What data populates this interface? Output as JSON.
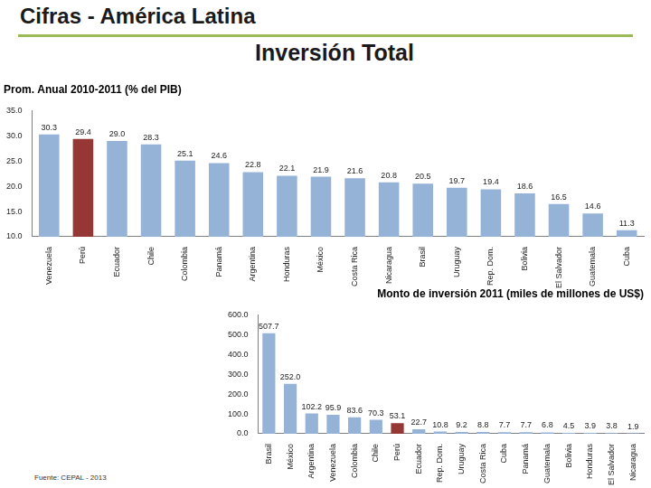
{
  "title": "Cifras - América Latina",
  "subtitle": "Inversión Total",
  "source": "Fuente: CEPAL - 2013",
  "chart_data": [
    {
      "type": "bar",
      "title": "Prom. Anual 2010-2011 (% del PIB)",
      "categories": [
        "Venezuela",
        "Perú",
        "Ecuador",
        "Chile",
        "Colombia",
        "Panamá",
        "Argentina",
        "Honduras",
        "México",
        "Costa Rica",
        "Nicaragua",
        "Brasil",
        "Uruguay",
        "Rep. Dom.",
        "Bolivia",
        "El Salvador",
        "Guatemala",
        "Cuba"
      ],
      "values": [
        30.3,
        29.4,
        29.0,
        28.3,
        25.1,
        24.6,
        22.8,
        22.1,
        21.9,
        21.6,
        20.8,
        20.5,
        19.7,
        19.4,
        18.6,
        16.5,
        14.6,
        11.3
      ],
      "value_labels": [
        "30.3",
        "29.4",
        "29.0",
        "28.3",
        "25.1",
        "24.6",
        "22.8",
        "22.1",
        "21.9",
        "21.6",
        "20.8",
        "20.5",
        "19.7",
        "19.4",
        "18.6",
        "16.5",
        "14.6",
        "11.3"
      ],
      "colors": [
        "#95b3d7",
        "#953735",
        "#95b3d7",
        "#95b3d7",
        "#95b3d7",
        "#95b3d7",
        "#95b3d7",
        "#95b3d7",
        "#95b3d7",
        "#95b3d7",
        "#95b3d7",
        "#95b3d7",
        "#95b3d7",
        "#95b3d7",
        "#95b3d7",
        "#95b3d7",
        "#95b3d7",
        "#95b3d7"
      ],
      "ylim": [
        10,
        35
      ],
      "yticks": [
        {
          "value": 10,
          "label": "10.0"
        },
        {
          "value": 15,
          "label": "15.0"
        },
        {
          "value": 20,
          "label": "20.0"
        },
        {
          "value": 25,
          "label": "25.0"
        },
        {
          "value": 30,
          "label": "30.0"
        },
        {
          "value": 35,
          "label": "35.0"
        }
      ],
      "grid": false,
      "data_labels": true
    },
    {
      "type": "bar",
      "title": "Monto de inversión 2011 (miles de millones de US$)",
      "categories": [
        "Brasil",
        "México",
        "Argentina",
        "Venezuela",
        "Colombia",
        "Chile",
        "Perú",
        "Ecuador",
        "Rep. Dom.",
        "Uruguay",
        "Costa Rica",
        "Cuba",
        "Panamá",
        "Guatemala",
        "Bolivia",
        "Honduras",
        "El Salvador",
        "Nicaragua"
      ],
      "values": [
        507.7,
        252.0,
        102.2,
        95.9,
        83.6,
        70.3,
        53.1,
        22.7,
        10.8,
        9.2,
        8.8,
        7.7,
        7.7,
        6.8,
        4.5,
        3.9,
        3.8,
        1.9
      ],
      "value_labels": [
        "507.7",
        "252.0",
        "102.2",
        "95.9",
        "83.6",
        "70.3",
        "53.1",
        "22.7",
        "10.8",
        "9.2",
        "8.8",
        "7.7",
        "7.7",
        "6.8",
        "4.5",
        "3.9",
        "3.8",
        "1.9"
      ],
      "colors": [
        "#95b3d7",
        "#95b3d7",
        "#95b3d7",
        "#95b3d7",
        "#95b3d7",
        "#95b3d7",
        "#953735",
        "#95b3d7",
        "#95b3d7",
        "#95b3d7",
        "#95b3d7",
        "#95b3d7",
        "#95b3d7",
        "#95b3d7",
        "#95b3d7",
        "#95b3d7",
        "#95b3d7",
        "#95b3d7"
      ],
      "ylim": [
        0,
        600
      ],
      "yticks": [
        {
          "value": 0,
          "label": "0.0"
        },
        {
          "value": 100,
          "label": "100.0"
        },
        {
          "value": 200,
          "label": "200.0"
        },
        {
          "value": 300,
          "label": "300.0"
        },
        {
          "value": 400,
          "label": "400.0"
        },
        {
          "value": 500,
          "label": "500.0"
        },
        {
          "value": 600,
          "label": "600.0"
        }
      ],
      "grid": false,
      "data_labels": true
    }
  ]
}
